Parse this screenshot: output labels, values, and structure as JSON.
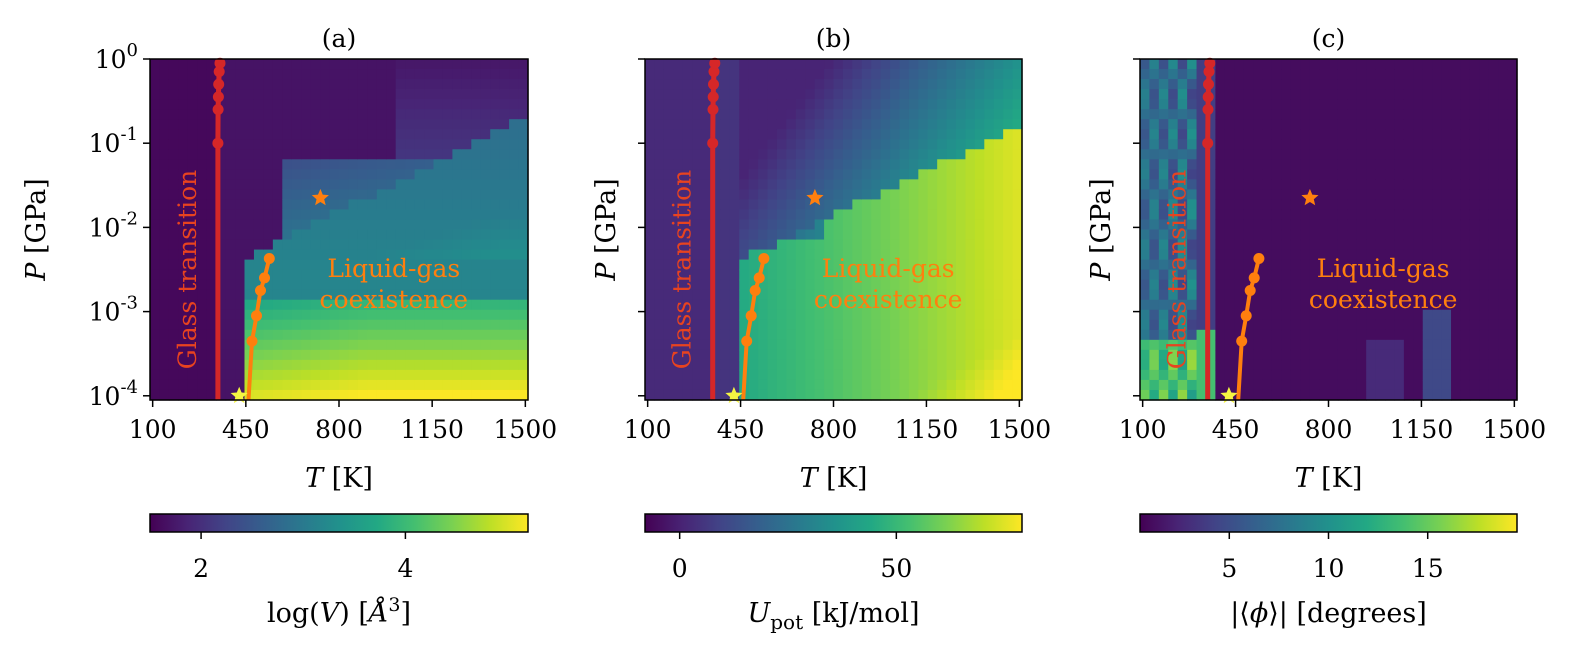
{
  "chart_data": [
    {
      "type": "heatmap",
      "panel_label": "(a)",
      "xlabel_symbol": "T",
      "xlabel_unit": " [K]",
      "ylabel_symbol": "P",
      "ylabel_unit": " [GPa]",
      "xlim": [
        90,
        1510
      ],
      "ylim_log10": [
        -4.05,
        0
      ],
      "xticks": [
        100,
        450,
        800,
        1150,
        1500
      ],
      "xtick_labels": [
        "100",
        "450",
        "800",
        "1150",
        "1500"
      ],
      "yticks_log10": [
        0,
        -1,
        -2,
        -3,
        -4
      ],
      "ytick_labels_show": true,
      "colorbar": {
        "label_prefix": "log(",
        "label_var": "V",
        "label_suffix": ") [",
        "label_unit": "Å",
        "label_exp": "3",
        "label_end": "]",
        "range": [
          1.5,
          5.2
        ],
        "ticks": [
          2,
          4
        ],
        "tick_labels": [
          "2",
          "4"
        ]
      },
      "annotations": {
        "glass": "Glass transition",
        "lg_line1": "Liquid-gas",
        "lg_line2": "coexistence"
      },
      "glass_transition": {
        "T": [
          345,
          345,
          346,
          347,
          348,
          350,
          353,
          355
        ],
        "log10P": [
          -4.05,
          -1.0,
          -0.6,
          -0.45,
          -0.3,
          -0.15,
          -0.05,
          0
        ]
      },
      "coexistence_line": {
        "T": [
          460,
          473,
          490,
          505,
          520,
          538
        ],
        "log10P": [
          -4.05,
          -3.35,
          -3.05,
          -2.75,
          -2.6,
          -2.37
        ]
      },
      "critical_point": {
        "T": 730,
        "log10P": -1.65
      },
      "triple_point": {
        "T": 425,
        "log10P": -4.0
      }
    },
    {
      "type": "heatmap",
      "panel_label": "(b)",
      "xlabel_symbol": "T",
      "xlabel_unit": " [K]",
      "ylabel_symbol": "P",
      "ylabel_unit": " [GPa]",
      "xlim": [
        90,
        1510
      ],
      "ylim_log10": [
        -4.05,
        0
      ],
      "xticks": [
        100,
        450,
        800,
        1150,
        1500
      ],
      "xtick_labels": [
        "100",
        "450",
        "800",
        "1150",
        "1500"
      ],
      "yticks_log10": [
        0,
        -1,
        -2,
        -3,
        -4
      ],
      "ytick_labels_show": false,
      "colorbar": {
        "label_var": "U",
        "label_sub": "pot",
        "label_unit": " [kJ/mol]",
        "range": [
          -8,
          79
        ],
        "ticks": [
          0,
          50
        ],
        "tick_labels": [
          "0",
          "50"
        ]
      },
      "annotations": {
        "glass": "Glass transition",
        "lg_line1": "Liquid-gas",
        "lg_line2": "coexistence"
      },
      "glass_transition": {
        "T": [
          345,
          345,
          346,
          347,
          348,
          350,
          353,
          355
        ],
        "log10P": [
          -4.05,
          -1.0,
          -0.6,
          -0.45,
          -0.3,
          -0.15,
          -0.05,
          0
        ]
      },
      "coexistence_line": {
        "T": [
          460,
          473,
          490,
          505,
          520,
          538
        ],
        "log10P": [
          -4.05,
          -3.35,
          -3.05,
          -2.75,
          -2.6,
          -2.37
        ]
      },
      "critical_point": {
        "T": 730,
        "log10P": -1.65
      },
      "triple_point": {
        "T": 425,
        "log10P": -4.0
      }
    },
    {
      "type": "heatmap",
      "panel_label": "(c)",
      "xlabel_symbol": "T",
      "xlabel_unit": " [K]",
      "ylabel_symbol": "P",
      "ylabel_unit": " [GPa]",
      "xlim": [
        90,
        1510
      ],
      "ylim_log10": [
        -4.05,
        0
      ],
      "xticks": [
        100,
        450,
        800,
        1150,
        1500
      ],
      "xtick_labels": [
        "100",
        "450",
        "800",
        "1150",
        "1500"
      ],
      "yticks_log10": [
        0,
        -1,
        -2,
        -3,
        -4
      ],
      "ytick_labels_show": false,
      "colorbar": {
        "label_pre": "|⟨",
        "label_var": "ϕ",
        "label_post": "⟩|",
        "label_unit": " [degrees]",
        "range": [
          0.5,
          19.5
        ],
        "ticks": [
          5,
          10,
          15
        ],
        "tick_labels": [
          "5",
          "10",
          "15"
        ]
      },
      "annotations": {
        "glass": "Glass transition",
        "lg_line1": "Liquid-gas",
        "lg_line2": "coexistence"
      },
      "glass_transition": {
        "T": [
          345,
          345,
          346,
          347,
          348,
          350,
          353,
          355
        ],
        "log10P": [
          -4.05,
          -1.0,
          -0.6,
          -0.45,
          -0.3,
          -0.15,
          -0.05,
          0
        ]
      },
      "coexistence_line": {
        "T": [
          460,
          473,
          490,
          505,
          520,
          538
        ],
        "log10P": [
          -4.05,
          -3.35,
          -3.05,
          -2.75,
          -2.6,
          -2.37
        ]
      },
      "critical_point": {
        "T": 730,
        "log10P": -1.65
      },
      "triple_point": {
        "T": 425,
        "log10P": -4.0
      }
    }
  ],
  "colors": {
    "glass_line": "#d62728",
    "coexistence_line": "#ff7f0e",
    "critical_star": "#ff7f0e",
    "triple_star": "#f5f542",
    "annotation_text": "#ff7f0e"
  }
}
